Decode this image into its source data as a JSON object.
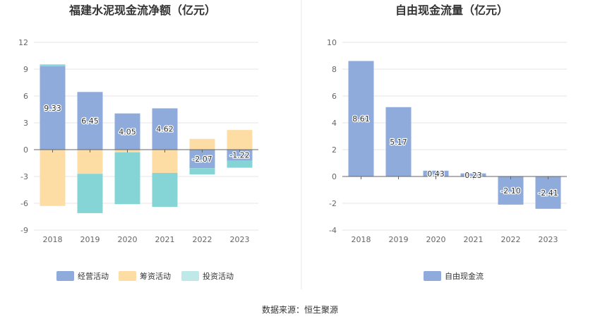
{
  "source_text": "数据来源：恒生聚源",
  "colors": {
    "operating": "#8eabdb",
    "financing": "#fddda4",
    "investing": "#86d5d6",
    "investing_legend": "#bfe8e9",
    "fcf": "#8eabdb",
    "grid": "#e6e6e6",
    "axis": "#666666",
    "divider": "#e8e8e8"
  },
  "chart_data": [
    {
      "type": "bar",
      "stacked": true,
      "title": "福建水泥现金流净额（亿元）",
      "categories": [
        "2018",
        "2019",
        "2020",
        "2021",
        "2022",
        "2023"
      ],
      "ylim": [
        -9,
        12
      ],
      "yticks": [
        12,
        9,
        6,
        3,
        0,
        -3,
        -6,
        -9
      ],
      "grid": true,
      "legend_position": "bottom",
      "series": [
        {
          "name": "经营活动",
          "values": [
            9.33,
            6.45,
            4.05,
            4.62,
            -2.07,
            -1.22
          ],
          "labels": [
            "9.33",
            "6.45",
            "4.05",
            "4.62",
            "-2.07",
            "-1.22"
          ]
        },
        {
          "name": "筹资活动",
          "values": [
            -6.3,
            -2.7,
            -0.3,
            -2.6,
            1.2,
            2.2
          ]
        },
        {
          "name": "投资活动",
          "values": [
            0.2,
            -4.4,
            -5.8,
            -3.8,
            -0.7,
            -0.8
          ]
        }
      ]
    },
    {
      "type": "bar",
      "title": "自由现金流量（亿元）",
      "categories": [
        "2018",
        "2019",
        "2020",
        "2021",
        "2022",
        "2023"
      ],
      "ylim": [
        -4,
        10
      ],
      "yticks": [
        10,
        8,
        6,
        4,
        2,
        0,
        -2,
        -4
      ],
      "grid": true,
      "legend_position": "bottom",
      "series": [
        {
          "name": "自由现金流",
          "values": [
            8.61,
            5.17,
            0.43,
            0.23,
            -2.1,
            -2.41
          ],
          "labels": [
            "8.61",
            "5.17",
            "0.43",
            "0.23",
            "-2.10",
            "-2.41"
          ]
        }
      ]
    }
  ]
}
